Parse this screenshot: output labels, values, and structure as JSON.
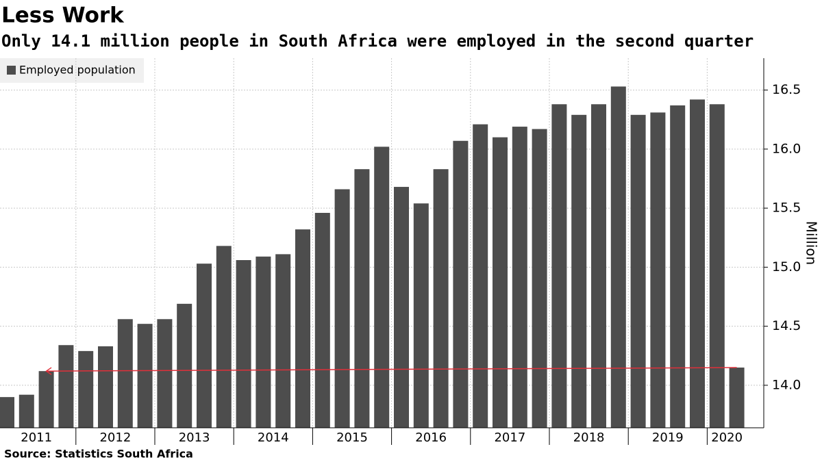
{
  "chart_data": {
    "type": "bar",
    "title": "Less Work",
    "subtitle": "Only 14.1 million people in South Africa were employed in the second quarter",
    "source": "Source: Statistics South Africa",
    "y_axis_label": "Million",
    "year_labels": [
      "2011",
      "2012",
      "2013",
      "2014",
      "2015",
      "2016",
      "2017",
      "2018",
      "2019",
      "2020"
    ],
    "categories": [
      null,
      null,
      null,
      null,
      null,
      null,
      null,
      null,
      null,
      null,
      null,
      null,
      null,
      null,
      null,
      null,
      null,
      null,
      null,
      null,
      null,
      null,
      null,
      null,
      null,
      null,
      null,
      null,
      null,
      null,
      null,
      null,
      null,
      null,
      null,
      null,
      null,
      null
    ],
    "series": [
      {
        "name": "Employed population",
        "color": "#4d4d4d",
        "values": [
          13.9,
          13.92,
          14.12,
          14.34,
          14.29,
          14.33,
          14.56,
          14.52,
          14.56,
          14.69,
          15.03,
          15.18,
          15.06,
          15.09,
          15.11,
          15.32,
          15.46,
          15.66,
          15.83,
          16.02,
          15.68,
          15.54,
          15.83,
          16.07,
          16.21,
          16.1,
          16.19,
          16.17,
          16.38,
          16.29,
          16.38,
          16.53,
          16.29,
          16.31,
          16.37,
          16.42,
          16.38,
          14.15
        ]
      }
    ],
    "arrow_color": "#e0303a",
    "ylim": [
      13.64,
      16.77
    ],
    "yticks": [
      {
        "value": 14,
        "label": "14.0"
      },
      {
        "value": 14.5,
        "label": "14.5"
      },
      {
        "value": 15,
        "label": "15.0"
      },
      {
        "value": 15.5,
        "label": "15.5"
      },
      {
        "value": 16,
        "label": "16.0"
      },
      {
        "value": 16.5,
        "label": "16.5"
      }
    ],
    "grid": true
  }
}
